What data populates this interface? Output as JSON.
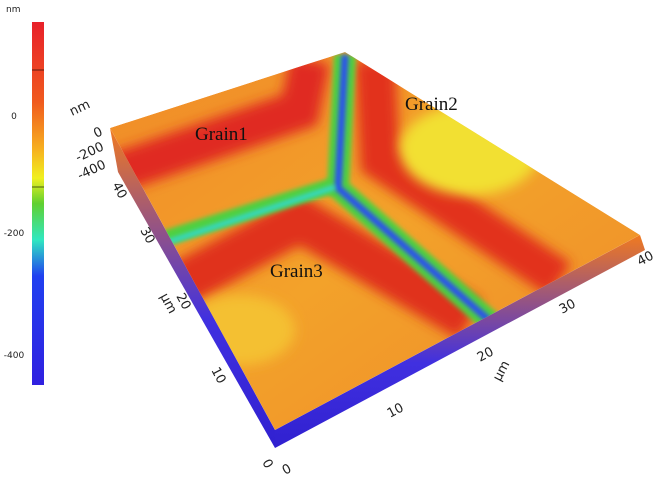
{
  "colorbar": {
    "unit": "nm",
    "ticks": [
      0,
      -200,
      -400
    ]
  },
  "surface": {
    "z_unit": "nm",
    "z_ticks": [
      0,
      -200,
      -400
    ],
    "y_unit": "μm",
    "y_ticks": [
      40,
      30,
      20,
      10,
      0
    ],
    "x_unit": "μm",
    "x_ticks": [
      0,
      10,
      20,
      30,
      40
    ],
    "labels": [
      "Grain1",
      "Grain2",
      "Grain3"
    ]
  }
}
